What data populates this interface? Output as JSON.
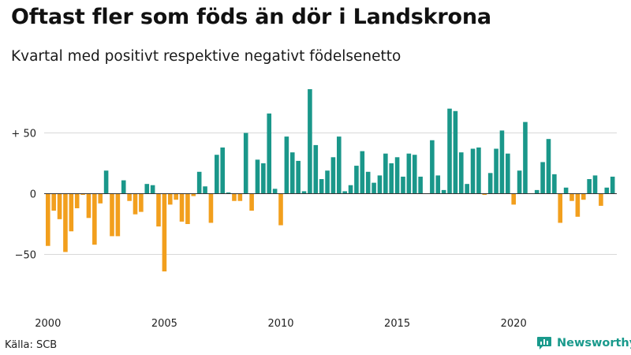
{
  "header": {
    "title": "Oftast fler som föds än dör i Landskrona",
    "subtitle": "Kvartal med positivt respektive negativt födelsenetto"
  },
  "footer": {
    "source": "Källa: SCB",
    "brand": "Newsworthy"
  },
  "colors": {
    "positive": "#1a978a",
    "negative": "#f29f1d",
    "grid": "#d9d9d9",
    "brand": "#1a9a8c"
  },
  "chart_data": {
    "type": "bar",
    "title": "Oftast fler som föds än dör i Landskrona",
    "subtitle": "Kvartal med positivt respektive negativt födelsenetto",
    "xlabel": "",
    "ylabel": "",
    "ylim": [
      -92,
      92
    ],
    "yticks": [
      {
        "value": 50,
        "label": "+ 50"
      },
      {
        "value": 0,
        "label": "0"
      },
      {
        "value": -50,
        "label": "−50"
      }
    ],
    "xticks": [
      "2000",
      "2005",
      "2010",
      "2015",
      "2020"
    ],
    "start_year": 2000,
    "grid": true,
    "values": [
      -43,
      -14,
      -21,
      -48,
      -31,
      -12,
      -1,
      -20,
      -42,
      -8,
      19,
      -35,
      -35,
      11,
      -6,
      -17,
      -15,
      8,
      7,
      -27,
      -64,
      -9,
      -5,
      -23,
      -25,
      -2,
      18,
      6,
      -24,
      32,
      38,
      1,
      -6,
      -6,
      50,
      -14,
      28,
      25,
      66,
      4,
      -26,
      47,
      34,
      27,
      2,
      86,
      40,
      12,
      19,
      30,
      47,
      2,
      7,
      23,
      35,
      18,
      9,
      15,
      33,
      25,
      30,
      14,
      33,
      32,
      14,
      0,
      44,
      15,
      3,
      70,
      68,
      34,
      8,
      37,
      38,
      -1,
      17,
      37,
      52,
      33,
      -9,
      19,
      59,
      0,
      3,
      26,
      45,
      16,
      -24,
      5,
      -6,
      -19,
      -5,
      12,
      15,
      -10,
      5,
      14
    ]
  }
}
